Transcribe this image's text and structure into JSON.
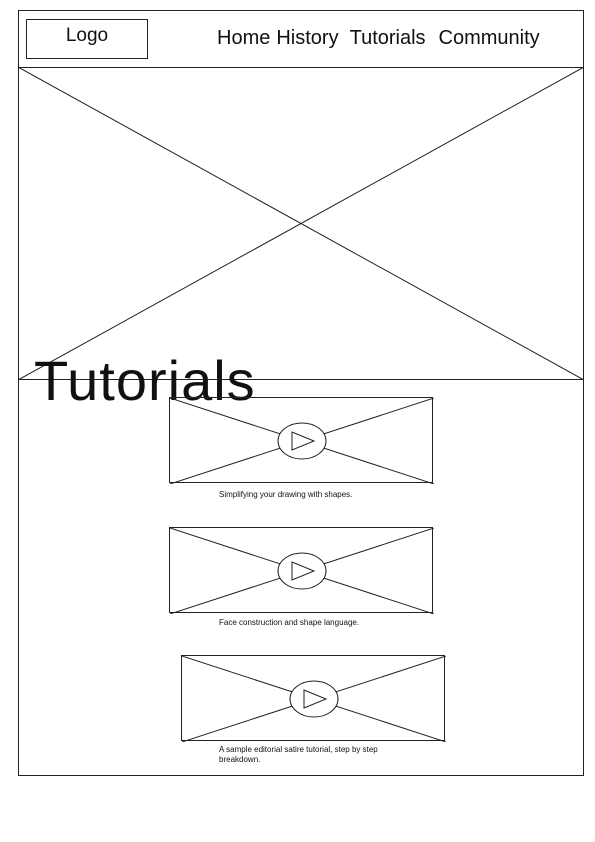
{
  "header": {
    "logo": "Logo",
    "nav": [
      "Home",
      "History",
      "Tutorials",
      "Community"
    ]
  },
  "hero": {
    "title": "Tutorials"
  },
  "videos": [
    {
      "caption": "Simplifying your drawing with shapes."
    },
    {
      "caption": "Face construction and shape language."
    },
    {
      "caption": "A sample editorial satire tutorial, step by step breakdown."
    }
  ],
  "icons": {
    "play": "play-icon"
  }
}
